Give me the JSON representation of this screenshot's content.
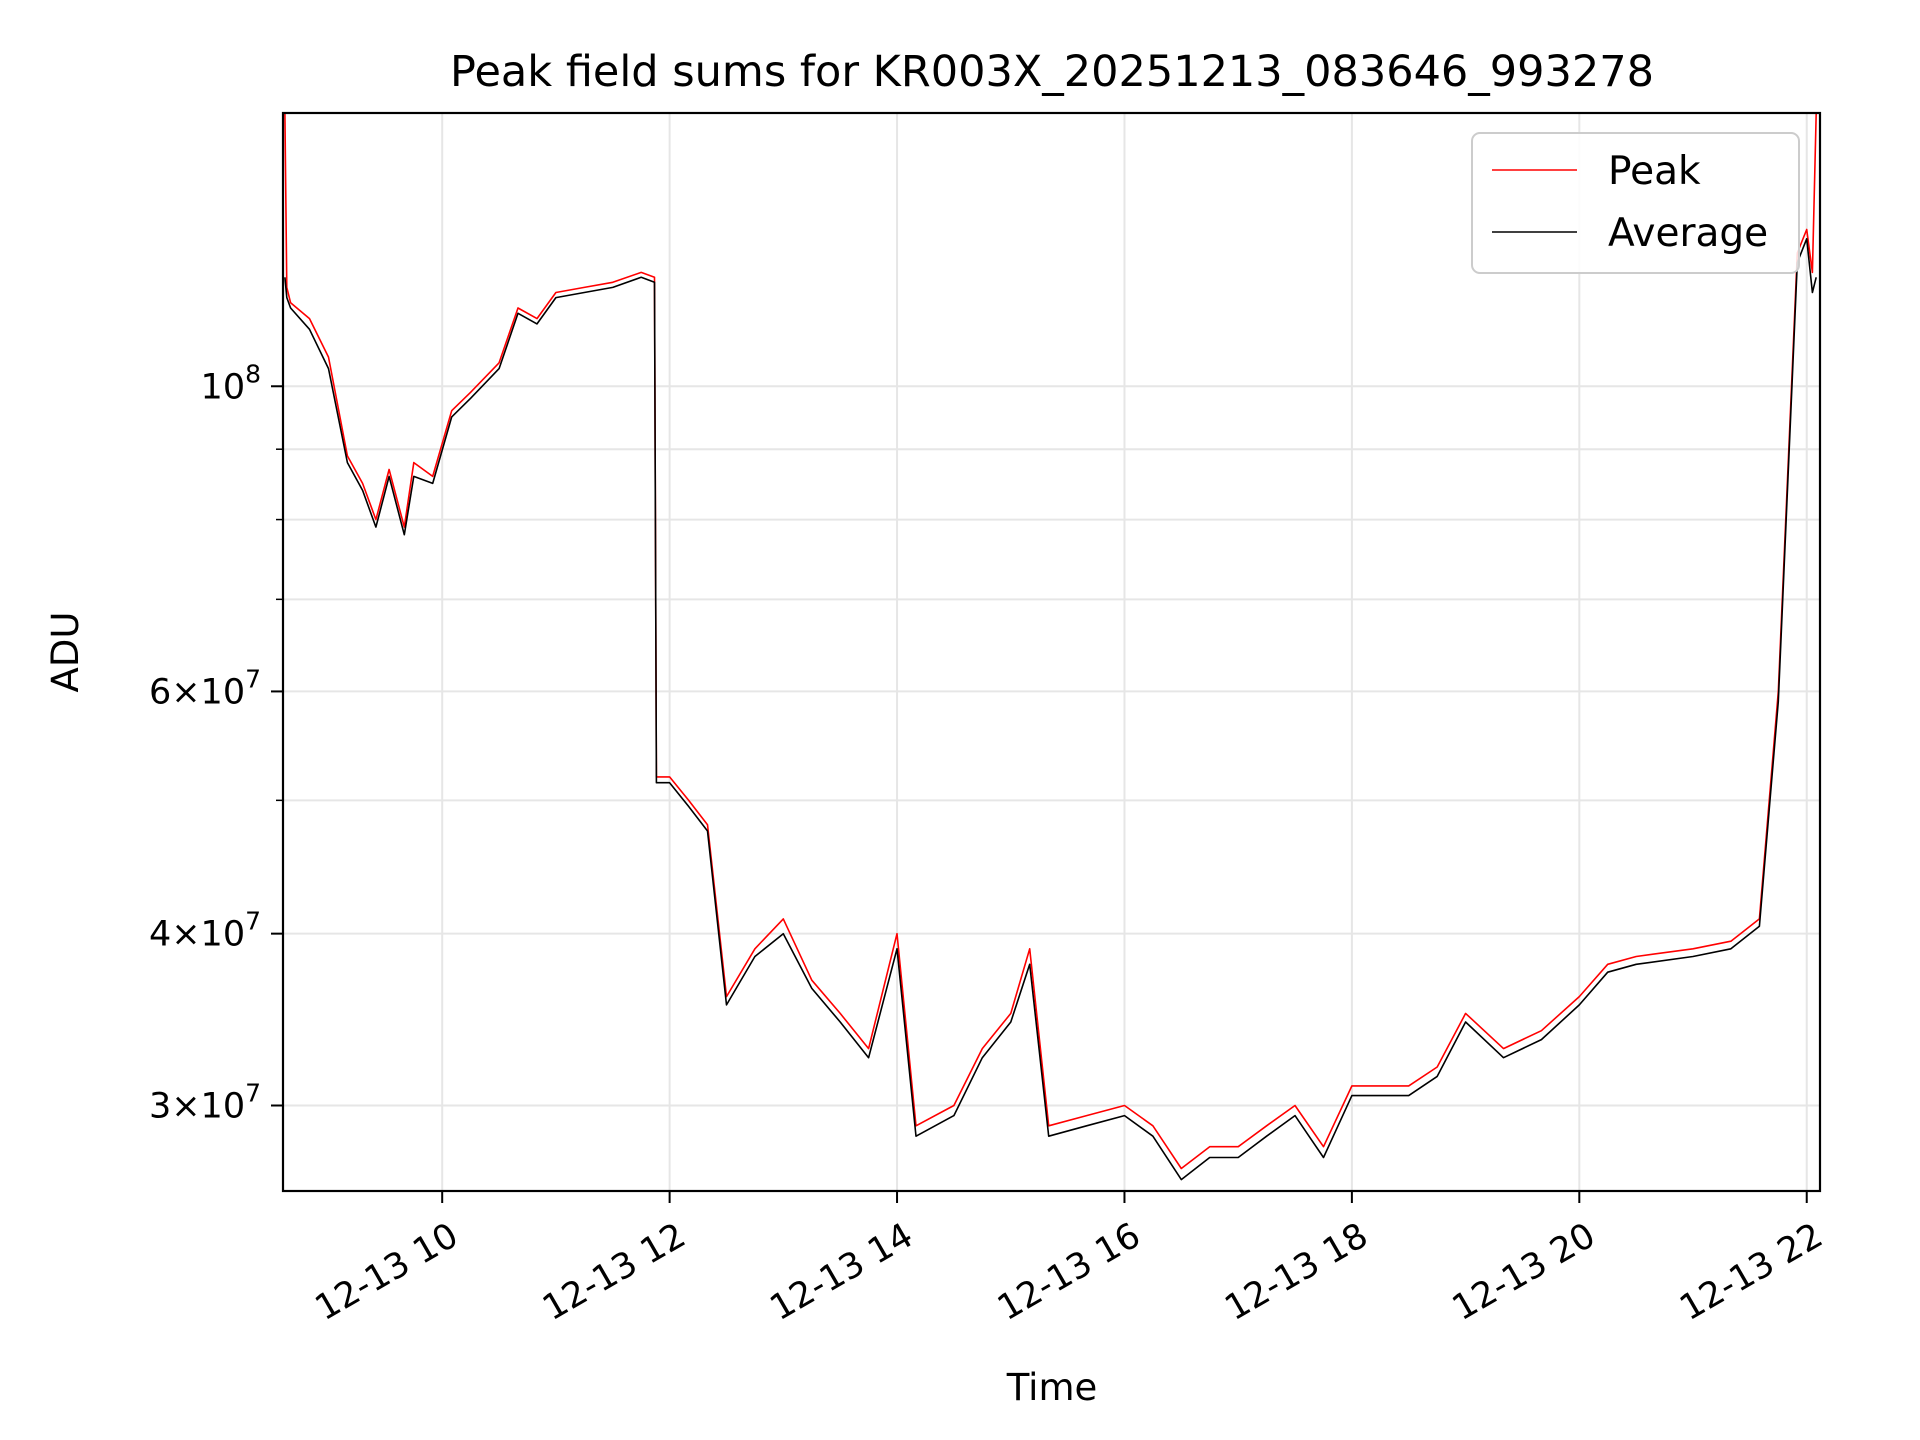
{
  "chart_data": {
    "type": "line",
    "title": "Peak field sums for KR003X_20251213_083646_993278",
    "xlabel": "Time",
    "ylabel": "ADU",
    "x_scale": "time",
    "y_scale": "log",
    "xlim": [
      "2025-12-13 08:36",
      "2025-12-13 22:07"
    ],
    "ylim": [
      26000000,
      158000000
    ],
    "grid": true,
    "legend_position": "top-right",
    "x_ticks": [
      "12-13 10",
      "12-13 12",
      "12-13 14",
      "12-13 16",
      "12-13 18",
      "12-13 20",
      "12-13 22"
    ],
    "y_ticks_major": [
      {
        "value": 100000000,
        "base": "10",
        "exp": "8",
        "mant": ""
      },
      {
        "value": 60000000,
        "base": "10",
        "exp": "7",
        "mant": "6"
      },
      {
        "value": 40000000,
        "base": "10",
        "exp": "7",
        "mant": "4"
      },
      {
        "value": 30000000,
        "base": "10",
        "exp": "7",
        "mant": "3"
      }
    ],
    "y_ticks_minor": [
      50000000,
      70000000,
      80000000,
      90000000
    ],
    "series": [
      {
        "name": "Peak",
        "color": "#ff0000",
        "x": [
          "2025-12-13 08:37",
          "2025-12-13 08:38",
          "2025-12-13 08:40",
          "2025-12-13 08:50",
          "2025-12-13 09:00",
          "2025-12-13 09:10",
          "2025-12-13 09:18",
          "2025-12-13 09:25",
          "2025-12-13 09:32",
          "2025-12-13 09:40",
          "2025-12-13 09:45",
          "2025-12-13 09:55",
          "2025-12-13 10:05",
          "2025-12-13 10:15",
          "2025-12-13 10:30",
          "2025-12-13 10:40",
          "2025-12-13 10:50",
          "2025-12-13 11:00",
          "2025-12-13 11:15",
          "2025-12-13 11:30",
          "2025-12-13 11:45",
          "2025-12-13 11:52",
          "2025-12-13 11:53",
          "2025-12-13 12:00",
          "2025-12-13 12:10",
          "2025-12-13 12:20",
          "2025-12-13 12:30",
          "2025-12-13 12:45",
          "2025-12-13 13:00",
          "2025-12-13 13:15",
          "2025-12-13 13:30",
          "2025-12-13 13:45",
          "2025-12-13 14:00",
          "2025-12-13 14:10",
          "2025-12-13 14:30",
          "2025-12-13 14:45",
          "2025-12-13 15:00",
          "2025-12-13 15:10",
          "2025-12-13 15:20",
          "2025-12-13 15:40",
          "2025-12-13 16:00",
          "2025-12-13 16:15",
          "2025-12-13 16:30",
          "2025-12-13 16:45",
          "2025-12-13 17:00",
          "2025-12-13 17:15",
          "2025-12-13 17:30",
          "2025-12-13 17:45",
          "2025-12-13 18:00",
          "2025-12-13 18:30",
          "2025-12-13 18:45",
          "2025-12-13 19:00",
          "2025-12-13 19:20",
          "2025-12-13 19:40",
          "2025-12-13 20:00",
          "2025-12-13 20:15",
          "2025-12-13 20:30",
          "2025-12-13 21:00",
          "2025-12-13 21:20",
          "2025-12-13 21:35",
          "2025-12-13 21:45",
          "2025-12-13 21:55",
          "2025-12-13 22:00",
          "2025-12-13 22:03",
          "2025-12-13 22:05"
        ],
        "y": [
          158000000,
          118000000,
          115000000,
          112000000,
          105000000,
          89000000,
          85000000,
          80000000,
          87000000,
          79000000,
          88000000,
          86000000,
          96000000,
          99000000,
          104000000,
          114000000,
          112000000,
          117000000,
          118000000,
          119000000,
          121000000,
          120000000,
          52000000,
          52000000,
          50000000,
          48000000,
          36000000,
          39000000,
          41000000,
          37000000,
          35000000,
          33000000,
          40000000,
          29000000,
          30000000,
          33000000,
          35000000,
          39000000,
          29000000,
          29500000,
          30000000,
          29000000,
          27000000,
          28000000,
          28000000,
          29000000,
          30000000,
          28000000,
          31000000,
          31000000,
          32000000,
          35000000,
          33000000,
          34000000,
          36000000,
          38000000,
          38500000,
          39000000,
          39500000,
          41000000,
          60000000,
          125000000,
          130000000,
          121000000,
          158000000
        ]
      },
      {
        "name": "Average",
        "color": "#000000",
        "x": [
          "2025-12-13 08:37",
          "2025-12-13 08:38",
          "2025-12-13 08:40",
          "2025-12-13 08:50",
          "2025-12-13 09:00",
          "2025-12-13 09:10",
          "2025-12-13 09:18",
          "2025-12-13 09:25",
          "2025-12-13 09:32",
          "2025-12-13 09:40",
          "2025-12-13 09:45",
          "2025-12-13 09:55",
          "2025-12-13 10:05",
          "2025-12-13 10:15",
          "2025-12-13 10:30",
          "2025-12-13 10:40",
          "2025-12-13 10:50",
          "2025-12-13 11:00",
          "2025-12-13 11:15",
          "2025-12-13 11:30",
          "2025-12-13 11:45",
          "2025-12-13 11:52",
          "2025-12-13 11:53",
          "2025-12-13 12:00",
          "2025-12-13 12:10",
          "2025-12-13 12:20",
          "2025-12-13 12:30",
          "2025-12-13 12:45",
          "2025-12-13 13:00",
          "2025-12-13 13:15",
          "2025-12-13 13:30",
          "2025-12-13 13:45",
          "2025-12-13 14:00",
          "2025-12-13 14:10",
          "2025-12-13 14:30",
          "2025-12-13 14:45",
          "2025-12-13 15:00",
          "2025-12-13 15:10",
          "2025-12-13 15:20",
          "2025-12-13 15:40",
          "2025-12-13 16:00",
          "2025-12-13 16:15",
          "2025-12-13 16:30",
          "2025-12-13 16:45",
          "2025-12-13 17:00",
          "2025-12-13 17:15",
          "2025-12-13 17:30",
          "2025-12-13 17:45",
          "2025-12-13 18:00",
          "2025-12-13 18:30",
          "2025-12-13 18:45",
          "2025-12-13 19:00",
          "2025-12-13 19:20",
          "2025-12-13 19:40",
          "2025-12-13 20:00",
          "2025-12-13 20:15",
          "2025-12-13 20:30",
          "2025-12-13 21:00",
          "2025-12-13 21:20",
          "2025-12-13 21:35",
          "2025-12-13 21:45",
          "2025-12-13 21:55",
          "2025-12-13 22:00",
          "2025-12-13 22:03",
          "2025-12-13 22:05"
        ],
        "y": [
          120000000,
          116000000,
          114000000,
          110000000,
          103000000,
          88000000,
          84000000,
          79000000,
          86000000,
          78000000,
          86000000,
          85000000,
          95000000,
          98000000,
          103000000,
          113000000,
          111000000,
          116000000,
          117000000,
          118000000,
          120000000,
          119000000,
          51500000,
          51500000,
          49500000,
          47500000,
          35500000,
          38500000,
          40000000,
          36500000,
          34500000,
          32500000,
          39000000,
          28500000,
          29500000,
          32500000,
          34500000,
          38000000,
          28500000,
          29000000,
          29500000,
          28500000,
          26500000,
          27500000,
          27500000,
          28500000,
          29500000,
          27500000,
          30500000,
          30500000,
          31500000,
          34500000,
          32500000,
          33500000,
          35500000,
          37500000,
          38000000,
          38500000,
          39000000,
          40500000,
          59000000,
          123000000,
          128000000,
          117000000,
          120000000
        ]
      }
    ]
  }
}
